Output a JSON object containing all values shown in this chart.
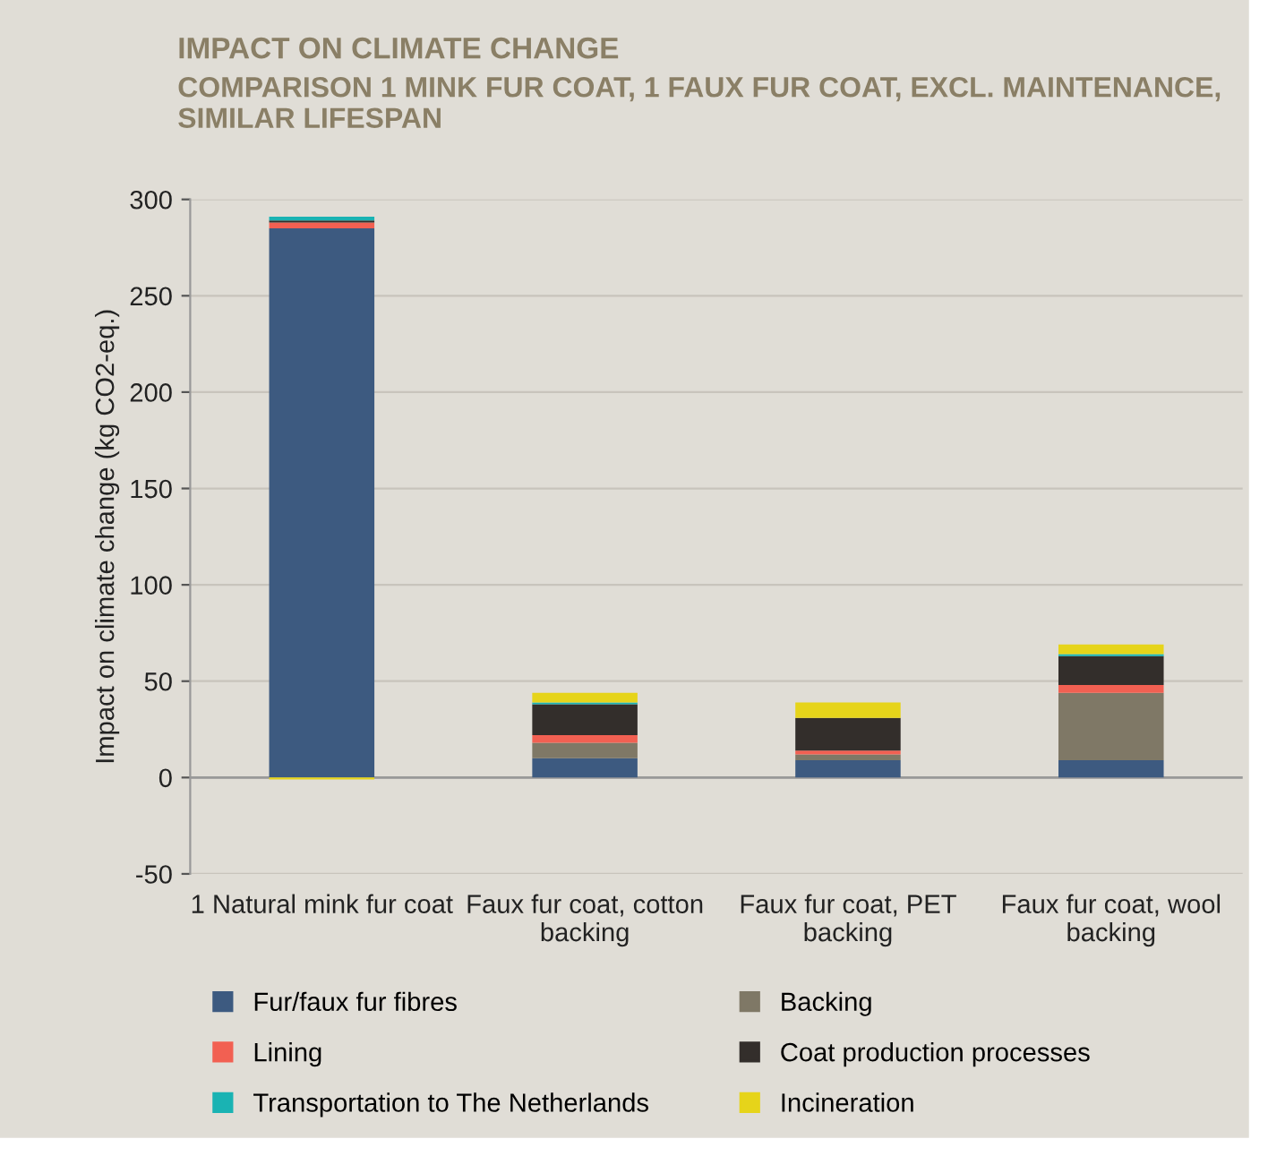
{
  "chart_data": {
    "type": "bar",
    "stacked": true,
    "title": "IMPACT ON CLIMATE CHANGE",
    "subtitle": "COMPARISON 1 MINK FUR COAT, 1 FAUX FUR COAT, EXCL. MAINTENANCE, SIMILAR LIFESPAN",
    "ylabel": "Impact on climate change (kg CO2-eq.)",
    "categories": [
      "1 Natural mink fur coat",
      "Faux fur coat, cotton backing",
      "Faux fur coat, PET backing",
      "Faux fur coat, wool backing"
    ],
    "series": [
      {
        "name": "Fur/faux fur fibres",
        "color": "#3d5a80",
        "values": [
          285,
          10,
          9,
          9
        ]
      },
      {
        "name": "Backing",
        "color": "#7f7866",
        "values": [
          0,
          8,
          3,
          35
        ]
      },
      {
        "name": "Lining",
        "color": "#f26052",
        "values": [
          3,
          4,
          2,
          4
        ]
      },
      {
        "name": "Coat production processes",
        "color": "#332e2b",
        "values": [
          1,
          16,
          17,
          15
        ]
      },
      {
        "name": "Transportation to The Netherlands",
        "color": "#1ab3b3",
        "values": [
          2,
          1,
          0,
          1
        ]
      },
      {
        "name": "Incineration",
        "color": "#e6d41a",
        "values": [
          -1,
          5,
          8,
          5
        ]
      }
    ],
    "ylim": [
      -50,
      300
    ],
    "yticks": [
      -50,
      0,
      50,
      100,
      150,
      200,
      250,
      300
    ],
    "grid": "y",
    "legend": "bottom"
  }
}
